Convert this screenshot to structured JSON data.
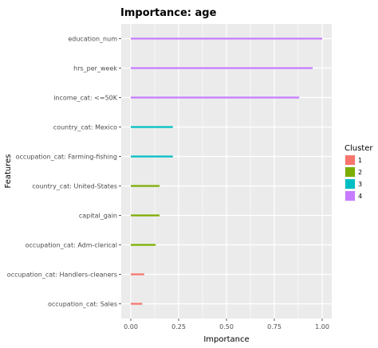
{
  "chart_data": {
    "type": "bar",
    "title": "Importance: age",
    "xlabel": "Importance",
    "ylabel": "Features",
    "xlim": [
      -0.05,
      1.05
    ],
    "x_ticks": [
      "0.00",
      "0.25",
      "0.50",
      "0.75",
      "1.00"
    ],
    "x_tick_values": [
      0,
      0.25,
      0.5,
      0.75,
      1.0
    ],
    "grid": true,
    "legend": {
      "title": "Cluster",
      "position": "right",
      "entries": [
        {
          "label": "1",
          "color": "#F8766D"
        },
        {
          "label": "2",
          "color": "#7CAE00"
        },
        {
          "label": "3",
          "color": "#00BFC4"
        },
        {
          "label": "4",
          "color": "#C77CFF"
        }
      ]
    },
    "features": [
      {
        "label": "education_num",
        "value": 1.0,
        "cluster": "4"
      },
      {
        "label": "hrs_per_week",
        "value": 0.95,
        "cluster": "4"
      },
      {
        "label": "income_cat: <=50K",
        "value": 0.88,
        "cluster": "4"
      },
      {
        "label": "country_cat: Mexico",
        "value": 0.22,
        "cluster": "3"
      },
      {
        "label": "occupation_cat: Farming-fishing",
        "value": 0.22,
        "cluster": "3"
      },
      {
        "label": "country_cat: United-States",
        "value": 0.15,
        "cluster": "2"
      },
      {
        "label": "capital_gain",
        "value": 0.15,
        "cluster": "2"
      },
      {
        "label": "occupation_cat: Adm-clerical",
        "value": 0.13,
        "cluster": "2"
      },
      {
        "label": "occupation_cat: Handlers-cleaners",
        "value": 0.07,
        "cluster": "1"
      },
      {
        "label": "occupation_cat: Sales",
        "value": 0.06,
        "cluster": "1"
      }
    ]
  }
}
